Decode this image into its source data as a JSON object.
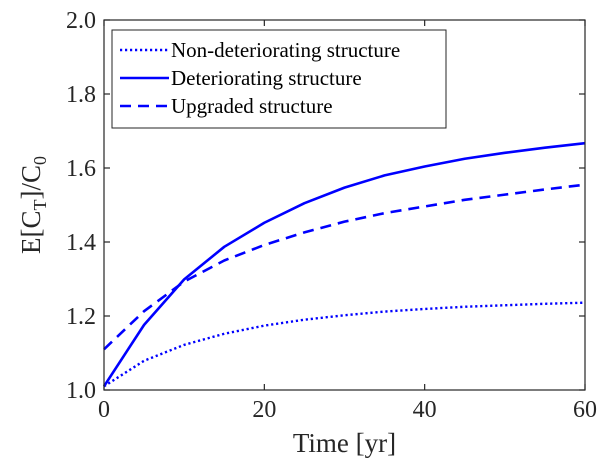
{
  "chart_data": {
    "type": "line",
    "title": "",
    "xlabel": "Time [yr]",
    "ylabel": {
      "base1": "E[C",
      "sub1": "T",
      "base2": "]/C",
      "sub2": "0"
    },
    "xlim": [
      0,
      60
    ],
    "ylim": [
      1.0,
      2.0
    ],
    "xticks": [
      "0",
      "20",
      "40",
      "60"
    ],
    "yticks": [
      "1.0",
      "1.2",
      "1.4",
      "1.6",
      "1.8",
      "2.0"
    ],
    "grid": false,
    "legend_position": "top-left",
    "x": [
      0,
      5,
      10,
      15,
      20,
      25,
      30,
      35,
      40,
      45,
      50,
      55,
      60
    ],
    "series": [
      {
        "name": "Non-deteriorating structure",
        "style": "dotted",
        "color": "#0000ff",
        "values": [
          1.01,
          1.079,
          1.122,
          1.152,
          1.174,
          1.19,
          1.202,
          1.212,
          1.219,
          1.225,
          1.229,
          1.233,
          1.236
        ]
      },
      {
        "name": "Deteriorating structure",
        "style": "solid",
        "color": "#0000ff",
        "values": [
          1.01,
          1.176,
          1.299,
          1.387,
          1.452,
          1.505,
          1.547,
          1.58,
          1.604,
          1.625,
          1.641,
          1.655,
          1.667
        ]
      },
      {
        "name": "Upgraded structure",
        "style": "dashed",
        "color": "#0000ff",
        "values": [
          1.11,
          1.213,
          1.293,
          1.35,
          1.392,
          1.426,
          1.455,
          1.478,
          1.496,
          1.514,
          1.528,
          1.542,
          1.555
        ]
      }
    ]
  }
}
